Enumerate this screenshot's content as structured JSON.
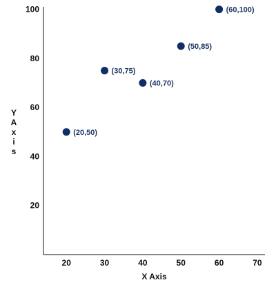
{
  "chart_data": {
    "type": "scatter",
    "title": "",
    "xlabel": "X Axis",
    "ylabel": "Y Axis",
    "xlim": [
      14,
      72
    ],
    "ylim": [
      0,
      101
    ],
    "xticks": [
      20,
      30,
      40,
      50,
      60,
      70
    ],
    "yticks": [
      20,
      40,
      60,
      80,
      100
    ],
    "grid": false,
    "legend": "none",
    "marker_color": "#0d2f66",
    "label_color": "#1f3864",
    "points": [
      {
        "x": 20,
        "y": 50,
        "label": "(20,50)"
      },
      {
        "x": 30,
        "y": 75,
        "label": "(30,75)"
      },
      {
        "x": 40,
        "y": 70,
        "label": "(40,70)"
      },
      {
        "x": 50,
        "y": 85,
        "label": "(50,85)"
      },
      {
        "x": 60,
        "y": 100,
        "label": "(60,100)"
      }
    ]
  }
}
